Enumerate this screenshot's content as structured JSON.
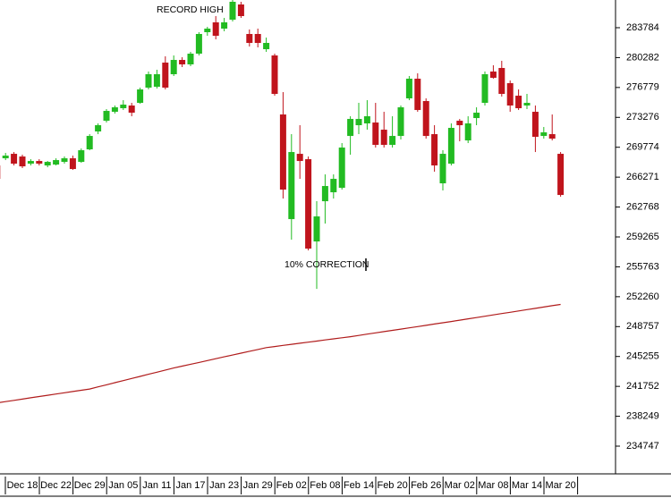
{
  "chart_data": {
    "type": "candlestick",
    "categories": [
      null,
      null,
      null,
      "Dec 18",
      null,
      null,
      null,
      "Dec 22",
      null,
      null,
      null,
      "Dec 29",
      null,
      null,
      null,
      "Jan 05",
      null,
      null,
      null,
      "Jan 11",
      null,
      null,
      null,
      "Jan 17",
      null,
      null,
      null,
      "Jan 23",
      null,
      null,
      null,
      "Jan 29",
      null,
      null,
      null,
      "Feb 02",
      null,
      null,
      null,
      "Feb 08",
      null,
      null,
      null,
      "Feb 14",
      null,
      null,
      null,
      "Feb 20",
      null,
      null,
      null,
      "Feb 26",
      null,
      null,
      null,
      "Mar 02",
      null,
      null,
      null,
      "Mar 08",
      null,
      null,
      null,
      "Mar 14",
      null,
      null,
      null,
      "Mar 20"
    ],
    "open": [
      267642,
      268480,
      269004,
      268690,
      267852,
      268166,
      267642,
      267747,
      268061,
      268480,
      268061,
      269528,
      271624,
      272882,
      273930,
      274349,
      274664,
      274978,
      276760,
      276864,
      279694,
      278332,
      280008,
      279484,
      280742,
      283257,
      284410,
      283676,
      284724,
      286506,
      283048,
      283048,
      281266,
      280532,
      273616,
      261354,
      269004,
      268376,
      258734,
      263450,
      264498,
      265022,
      271100,
      272358,
      272568,
      272672,
      271834,
      270052,
      271100,
      275502,
      277808,
      275188,
      271310,
      265546,
      267852,
      272882,
      270576,
      273196,
      274978,
      278646,
      279065,
      277284,
      275816,
      274664,
      273930,
      271100,
      271310,
      269004
    ],
    "high": [
      267852,
      269109,
      269214,
      268900,
      268376,
      268376,
      268166,
      268480,
      268690,
      268795,
      269633,
      271310,
      272568,
      274244,
      274664,
      275292,
      274978,
      276760,
      278646,
      278856,
      280428,
      280532,
      280323,
      280952,
      283257,
      283886,
      285144,
      284934,
      287030,
      286820,
      283572,
      283676,
      282628,
      280742,
      276236,
      271310,
      272358,
      268690,
      263450,
      266594,
      266594,
      270262,
      273406,
      274978,
      275292,
      274978,
      273930,
      273406,
      274664,
      278122,
      278436,
      275502,
      272358,
      269424,
      272568,
      273092,
      273406,
      274454,
      278646,
      279380,
      279904,
      277598,
      276550,
      276026,
      274664,
      272148,
      273616,
      269214
    ],
    "low": [
      265860,
      268271,
      267642,
      267328,
      267642,
      267642,
      267432,
      267642,
      267852,
      267118,
      267956,
      269424,
      271310,
      272672,
      273720,
      274140,
      273406,
      274873,
      276550,
      276655,
      276550,
      278122,
      279170,
      279275,
      280532,
      282838,
      282419,
      283362,
      284515,
      284934,
      281580,
      281476,
      280952,
      275816,
      263764,
      258944,
      266070,
      257686,
      253180,
      260830,
      263764,
      264812,
      268900,
      271310,
      271834,
      269738,
      269738,
      269738,
      270681,
      275292,
      273930,
      270786,
      266908,
      264708,
      267642,
      270472,
      270262,
      272358,
      274664,
      277808,
      275712,
      273930,
      274140,
      274244,
      269214,
      270786,
      270576,
      263974
    ],
    "close": [
      266070,
      268795,
      267852,
      267537,
      268166,
      267852,
      268061,
      268271,
      268480,
      267223,
      269424,
      271100,
      272358,
      274035,
      274454,
      274768,
      273825,
      276550,
      278332,
      278332,
      276760,
      280008,
      279484,
      280742,
      283048,
      283676,
      282838,
      284410,
      286820,
      285144,
      282000,
      282000,
      282000,
      276026,
      264812,
      269214,
      268166,
      257896,
      261668,
      265232,
      266070,
      269738,
      273092,
      273092,
      273406,
      270052,
      270052,
      271100,
      274454,
      277808,
      274140,
      271100,
      267642,
      269004,
      272044,
      272358,
      272568,
      273825,
      278332,
      277912,
      276026,
      274664,
      274349,
      274978,
      270996,
      271520,
      270786,
      264184
    ],
    "up_color": "#22bb22",
    "down_color": "#c0141c",
    "moving_average": {
      "color": "#b01c1c",
      "values": [
        239820,
        239968,
        240116,
        240264,
        240412,
        240560,
        240708,
        240856,
        241004,
        241152,
        241300,
        241448,
        241694,
        241940,
        242186,
        242432,
        242678,
        242924,
        243170,
        243416,
        243662,
        243908,
        244125,
        244342,
        244559,
        244776,
        244993,
        245210,
        245427,
        245644,
        245861,
        246078,
        246295,
        246423,
        246551,
        246679,
        246807,
        246935,
        247063,
        247191,
        247319,
        247447,
        247575,
        247723,
        247871,
        248019,
        248167,
        248315,
        248463,
        248611,
        248759,
        248907,
        249055,
        249203,
        249357,
        249511,
        249665,
        249819,
        249973,
        250127,
        250281,
        250435,
        250589,
        250743,
        250897,
        251051,
        251205,
        251359
      ]
    },
    "annotations": [
      "RECORD HIGH",
      "10% CORRECTION"
    ],
    "annotation_color": "#1a1aa6",
    "ylim": [
      231500,
      287030
    ],
    "yticks": [
      283784,
      280282,
      276779,
      273276,
      269774,
      266271,
      262768,
      259265,
      255763,
      252260,
      248757,
      245255,
      241752,
      238249,
      234747
    ]
  }
}
